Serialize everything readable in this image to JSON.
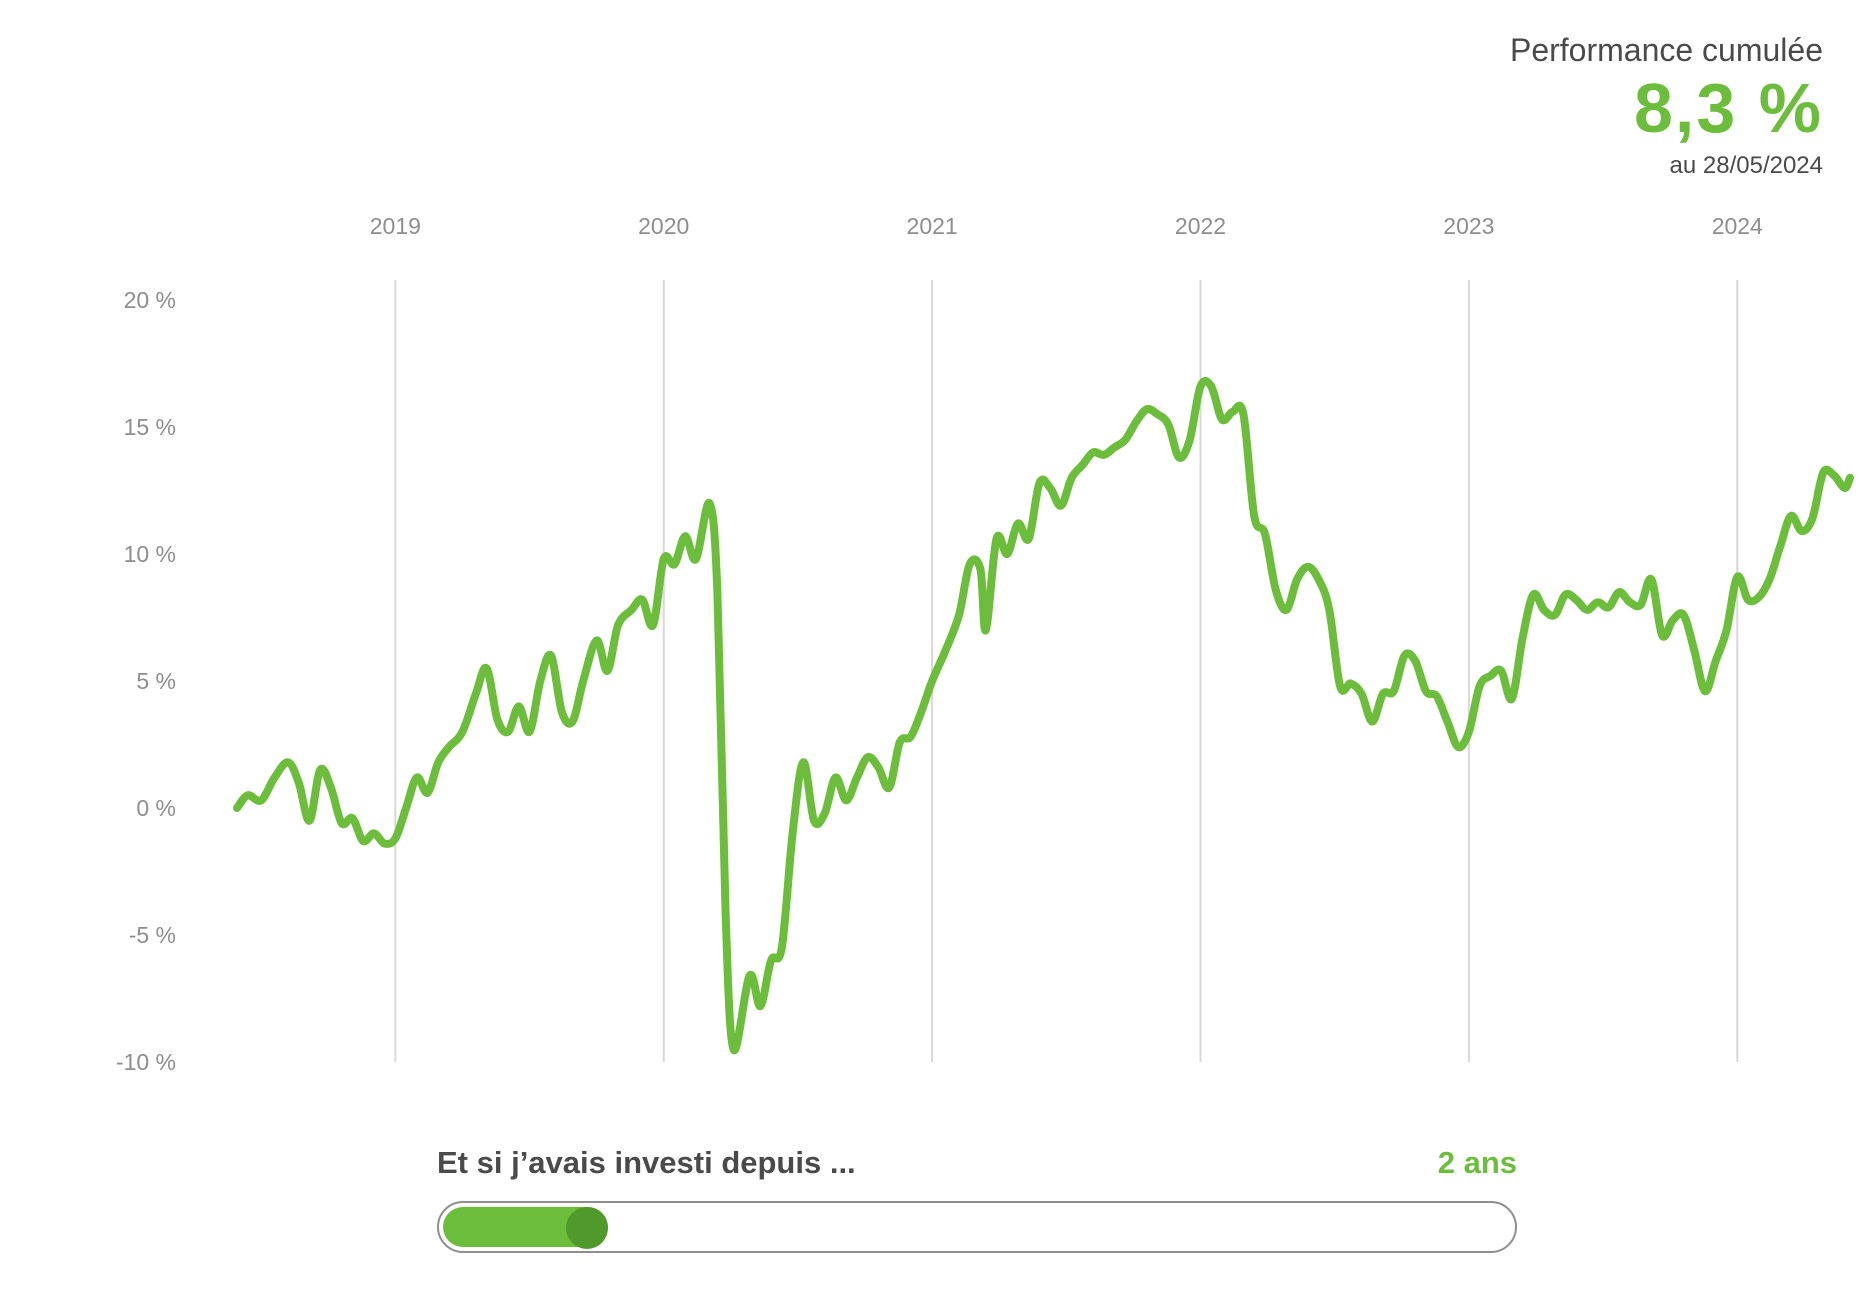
{
  "summary": {
    "label": "Performance cumulée",
    "value": "8,3 %",
    "date": "au 28/05/2024"
  },
  "slider": {
    "question": "Et si j’avais investi depuis ...",
    "value_label": "2 ans",
    "position": 0.12
  },
  "colors": {
    "line": "#6cbd3c",
    "handle": "#4f9a2b",
    "grid": "#d8d8d8",
    "tick": "#8e8e8e",
    "text": "#4a4a4a"
  },
  "chart_data": {
    "type": "line",
    "title": "",
    "xlabel": "",
    "ylabel": "",
    "x_ticks": [
      "2019",
      "2020",
      "2021",
      "2022",
      "2023",
      "2024"
    ],
    "y_ticks": [
      "20 %",
      "15 %",
      "10 %",
      "5 %",
      "0 %",
      "-5 %",
      "-10 %"
    ],
    "ylim": [
      -10,
      20
    ],
    "xlim": [
      2018.41,
      2024.42
    ],
    "grid": "vertical",
    "series": [
      {
        "values": [
          [
            2018.41,
            0.0
          ],
          [
            2018.45,
            0.5
          ],
          [
            2018.5,
            0.3
          ],
          [
            2018.55,
            1.2
          ],
          [
            2018.6,
            1.8
          ],
          [
            2018.64,
            1.0
          ],
          [
            2018.68,
            -0.5
          ],
          [
            2018.72,
            1.5
          ],
          [
            2018.76,
            0.8
          ],
          [
            2018.8,
            -0.6
          ],
          [
            2018.84,
            -0.4
          ],
          [
            2018.88,
            -1.3
          ],
          [
            2018.92,
            -1.0
          ],
          [
            2018.96,
            -1.4
          ],
          [
            2019.0,
            -1.2
          ],
          [
            2019.04,
            0.0
          ],
          [
            2019.08,
            1.2
          ],
          [
            2019.12,
            0.6
          ],
          [
            2019.16,
            1.8
          ],
          [
            2019.2,
            2.4
          ],
          [
            2019.25,
            3.0
          ],
          [
            2019.3,
            4.5
          ],
          [
            2019.34,
            5.5
          ],
          [
            2019.38,
            3.5
          ],
          [
            2019.42,
            3.0
          ],
          [
            2019.46,
            4.0
          ],
          [
            2019.5,
            3.0
          ],
          [
            2019.54,
            5.0
          ],
          [
            2019.58,
            6.0
          ],
          [
            2019.62,
            3.8
          ],
          [
            2019.66,
            3.4
          ],
          [
            2019.7,
            5.0
          ],
          [
            2019.75,
            6.6
          ],
          [
            2019.79,
            5.4
          ],
          [
            2019.83,
            7.2
          ],
          [
            2019.88,
            7.8
          ],
          [
            2019.92,
            8.2
          ],
          [
            2019.96,
            7.2
          ],
          [
            2020.0,
            9.8
          ],
          [
            2020.04,
            9.6
          ],
          [
            2020.08,
            10.7
          ],
          [
            2020.12,
            9.8
          ],
          [
            2020.17,
            12.0
          ],
          [
            2020.2,
            8.5
          ],
          [
            2020.23,
            -4.0
          ],
          [
            2020.26,
            -9.5
          ],
          [
            2020.32,
            -6.6
          ],
          [
            2020.36,
            -7.8
          ],
          [
            2020.4,
            -6.0
          ],
          [
            2020.44,
            -5.5
          ],
          [
            2020.48,
            -1.0
          ],
          [
            2020.52,
            1.8
          ],
          [
            2020.56,
            -0.5
          ],
          [
            2020.6,
            -0.2
          ],
          [
            2020.64,
            1.2
          ],
          [
            2020.68,
            0.3
          ],
          [
            2020.72,
            1.2
          ],
          [
            2020.76,
            2.0
          ],
          [
            2020.8,
            1.6
          ],
          [
            2020.84,
            0.8
          ],
          [
            2020.88,
            2.6
          ],
          [
            2020.92,
            2.8
          ],
          [
            2020.96,
            3.8
          ],
          [
            2021.0,
            5.0
          ],
          [
            2021.05,
            6.2
          ],
          [
            2021.1,
            7.6
          ],
          [
            2021.14,
            9.6
          ],
          [
            2021.18,
            9.4
          ],
          [
            2021.2,
            7.0
          ],
          [
            2021.24,
            10.6
          ],
          [
            2021.28,
            10.0
          ],
          [
            2021.32,
            11.2
          ],
          [
            2021.36,
            10.6
          ],
          [
            2021.4,
            12.8
          ],
          [
            2021.44,
            12.6
          ],
          [
            2021.48,
            11.9
          ],
          [
            2021.52,
            13.0
          ],
          [
            2021.56,
            13.5
          ],
          [
            2021.6,
            14.0
          ],
          [
            2021.64,
            13.9
          ],
          [
            2021.68,
            14.2
          ],
          [
            2021.72,
            14.5
          ],
          [
            2021.76,
            15.2
          ],
          [
            2021.8,
            15.7
          ],
          [
            2021.84,
            15.5
          ],
          [
            2021.88,
            15.1
          ],
          [
            2021.92,
            13.8
          ],
          [
            2021.96,
            14.5
          ],
          [
            2022.0,
            16.6
          ],
          [
            2022.04,
            16.6
          ],
          [
            2022.08,
            15.3
          ],
          [
            2022.12,
            15.6
          ],
          [
            2022.16,
            15.5
          ],
          [
            2022.2,
            11.5
          ],
          [
            2022.24,
            10.8
          ],
          [
            2022.28,
            8.6
          ],
          [
            2022.32,
            7.8
          ],
          [
            2022.36,
            9.0
          ],
          [
            2022.4,
            9.5
          ],
          [
            2022.44,
            9.0
          ],
          [
            2022.48,
            7.8
          ],
          [
            2022.52,
            4.8
          ],
          [
            2022.56,
            4.9
          ],
          [
            2022.6,
            4.5
          ],
          [
            2022.64,
            3.4
          ],
          [
            2022.68,
            4.5
          ],
          [
            2022.72,
            4.6
          ],
          [
            2022.76,
            6.0
          ],
          [
            2022.8,
            5.8
          ],
          [
            2022.84,
            4.6
          ],
          [
            2022.88,
            4.4
          ],
          [
            2022.92,
            3.4
          ],
          [
            2022.96,
            2.4
          ],
          [
            2023.0,
            3.0
          ],
          [
            2023.04,
            4.8
          ],
          [
            2023.08,
            5.2
          ],
          [
            2023.12,
            5.4
          ],
          [
            2023.16,
            4.3
          ],
          [
            2023.2,
            6.7
          ],
          [
            2023.24,
            8.4
          ],
          [
            2023.28,
            7.8
          ],
          [
            2023.32,
            7.6
          ],
          [
            2023.36,
            8.4
          ],
          [
            2023.4,
            8.2
          ],
          [
            2023.44,
            7.8
          ],
          [
            2023.48,
            8.1
          ],
          [
            2023.52,
            7.9
          ],
          [
            2023.56,
            8.5
          ],
          [
            2023.6,
            8.1
          ],
          [
            2023.64,
            8.0
          ],
          [
            2023.68,
            9.0
          ],
          [
            2023.72,
            6.8
          ],
          [
            2023.76,
            7.4
          ],
          [
            2023.8,
            7.6
          ],
          [
            2023.84,
            6.2
          ],
          [
            2023.88,
            4.6
          ],
          [
            2023.92,
            5.8
          ],
          [
            2023.96,
            7.0
          ],
          [
            2024.0,
            9.1
          ],
          [
            2024.04,
            8.2
          ],
          [
            2024.08,
            8.3
          ],
          [
            2024.12,
            9.0
          ],
          [
            2024.16,
            10.3
          ],
          [
            2024.2,
            11.5
          ],
          [
            2024.24,
            10.9
          ],
          [
            2024.28,
            11.4
          ],
          [
            2024.32,
            13.2
          ],
          [
            2024.36,
            13.1
          ],
          [
            2024.4,
            12.6
          ],
          [
            2024.42,
            13.0
          ]
        ]
      }
    ]
  }
}
